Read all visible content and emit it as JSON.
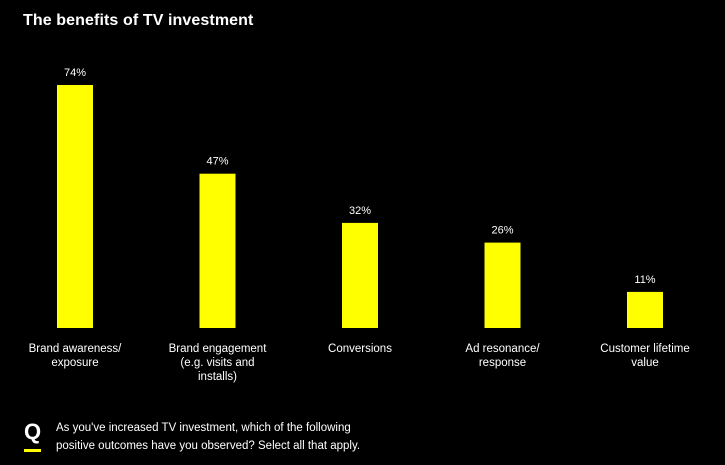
{
  "colors": {
    "background": "#000000",
    "bar": "#ffff00",
    "text": "#ffffff",
    "accent": "#ffff00"
  },
  "chart_data": {
    "type": "bar",
    "title": "The benefits of TV investment",
    "categories": [
      [
        "Brand awareness/",
        "exposure"
      ],
      [
        "Brand engagement",
        "(e.g. visits and",
        "installs)"
      ],
      [
        "Conversions"
      ],
      [
        "Ad resonance/",
        "response"
      ],
      [
        "Customer lifetime",
        "value"
      ]
    ],
    "values": [
      74,
      47,
      32,
      26,
      11
    ],
    "value_labels": [
      "74%",
      "47%",
      "32%",
      "26%",
      "11%"
    ],
    "unit": "%",
    "ylim": [
      0,
      74
    ],
    "xlabel": "",
    "ylabel": "",
    "grid": false,
    "legend": "none"
  },
  "footer": {
    "icon": "q-icon",
    "icon_letter": "Q",
    "question_line1": "As you've increased TV investment, which of the following",
    "question_line2": "positive outcomes have you observed? Select all that apply."
  }
}
